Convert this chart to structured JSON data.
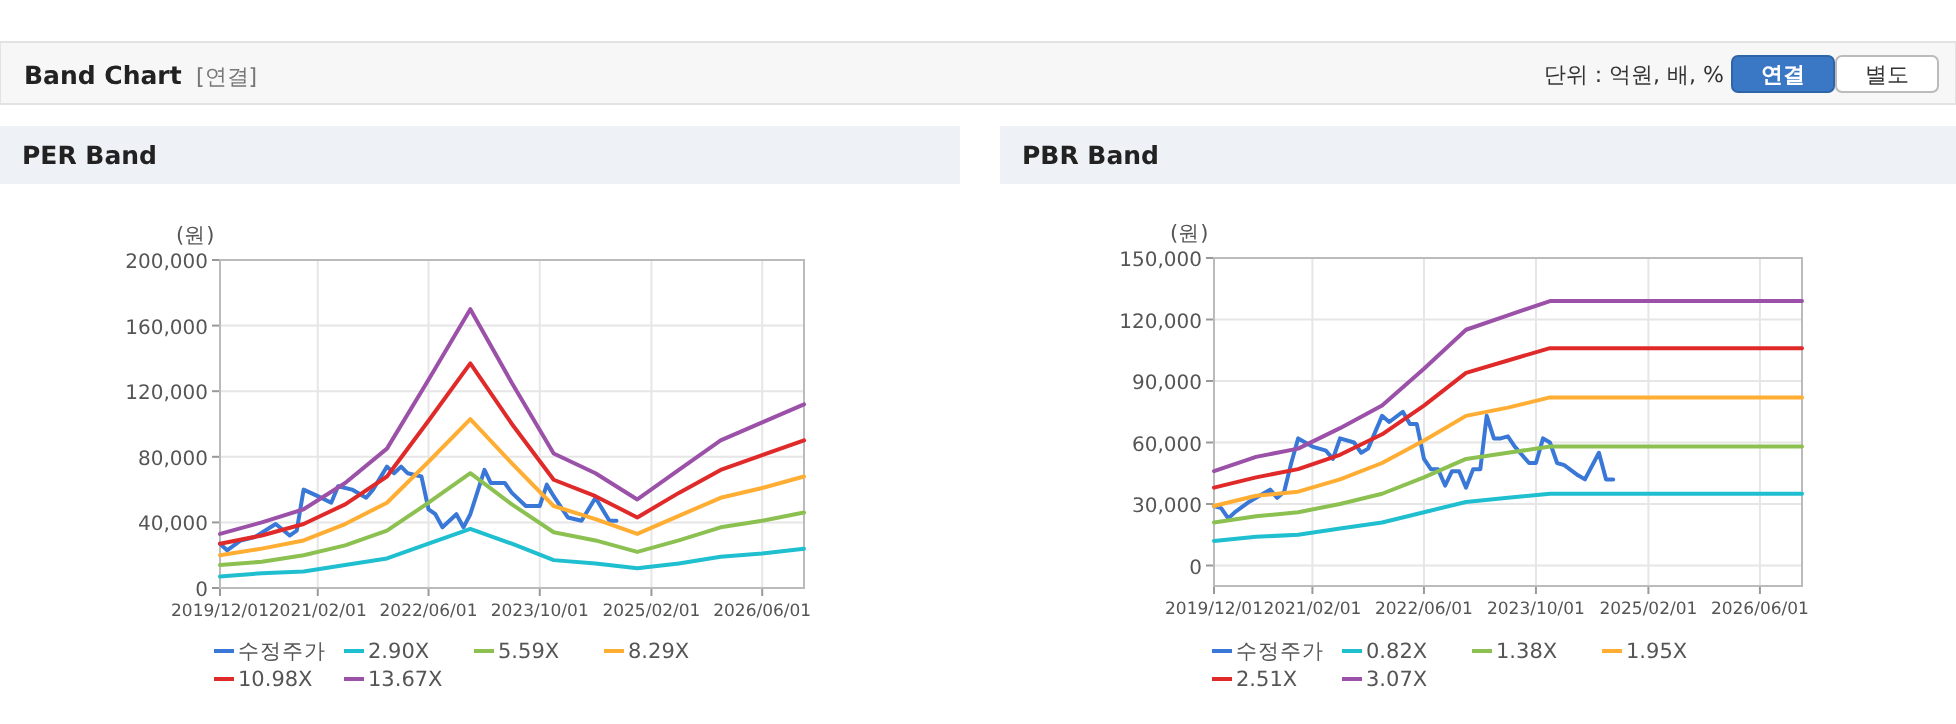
{
  "chart_data": [
    {
      "type": "other",
      "title": "Band Chart",
      "subtitle": "[연결]",
      "annotations": [
        "단위 : 억원, 배, %",
        "연결",
        "별도"
      ]
    },
    {
      "type": "line",
      "title": "PER Band",
      "ylabel": "(원)",
      "grid": true,
      "legend": "bottom",
      "marker": "none",
      "line_style": "solid",
      "xlim": [
        "2019-12-01",
        "2026-12-01"
      ],
      "ylim": [
        0,
        200000
      ],
      "xticks": [
        {
          "value": "2019-12-01",
          "label": "2019/12/01"
        },
        {
          "value": "2021-02-01",
          "label": "2021/02/01"
        },
        {
          "value": "2022-06-01",
          "label": "2022/06/01"
        },
        {
          "value": "2023-10-01",
          "label": "2023/10/01"
        },
        {
          "value": "2025-02-01",
          "label": "2025/02/01"
        },
        {
          "value": "2026-06-01",
          "label": "2026/06/01"
        }
      ],
      "yticks": [
        {
          "value": 0,
          "label": "0"
        },
        {
          "value": 40000,
          "label": "40,000"
        },
        {
          "value": 80000,
          "label": "80,000"
        },
        {
          "value": 120000,
          "label": "120,000"
        },
        {
          "value": 160000,
          "label": "160,000"
        },
        {
          "value": 200000,
          "label": "200,000"
        }
      ],
      "series": [
        {
          "name": "수정주가",
          "color": "#3a78d8",
          "x": [
            "2019-12",
            "2020-01",
            "2020-03",
            "2020-05",
            "2020-08",
            "2020-10",
            "2020-11",
            "2020-12",
            "2021-02",
            "2021-04",
            "2021-05",
            "2021-07",
            "2021-09",
            "2021-10",
            "2021-12",
            "2022-01",
            "2022-02",
            "2022-03",
            "2022-05",
            "2022-06",
            "2022-07",
            "2022-08",
            "2022-10",
            "2022-11",
            "2022-12",
            "2023-02",
            "2023-03",
            "2023-05",
            "2023-06",
            "2023-08",
            "2023-10",
            "2023-11",
            "2023-12",
            "2024-02",
            "2024-04",
            "2024-06",
            "2024-08",
            "2024-09"
          ],
          "values": [
            27000,
            23000,
            29000,
            31000,
            39000,
            32000,
            35000,
            60000,
            56000,
            52000,
            62000,
            60000,
            55000,
            60000,
            74000,
            70000,
            74000,
            70000,
            68000,
            48000,
            45000,
            37000,
            45000,
            37000,
            45000,
            72000,
            64000,
            64000,
            58000,
            50000,
            50000,
            63000,
            56000,
            43000,
            41000,
            55000,
            41000,
            41000
          ]
        },
        {
          "name": "2.90X",
          "color": "#1fbfd0",
          "x": [
            "2019-12",
            "2020-06",
            "2020-12",
            "2021-06",
            "2021-12",
            "2022-06",
            "2022-12",
            "2023-06",
            "2023-12",
            "2024-06",
            "2024-12",
            "2025-06",
            "2025-12",
            "2026-06",
            "2026-12"
          ],
          "values": [
            7000,
            9000,
            10000,
            14000,
            18000,
            27000,
            36000,
            27000,
            17000,
            15000,
            12000,
            15000,
            19000,
            21000,
            24000
          ]
        },
        {
          "name": "5.59X",
          "color": "#8cc152",
          "x": [
            "2019-12",
            "2020-06",
            "2020-12",
            "2021-06",
            "2021-12",
            "2022-06",
            "2022-12",
            "2023-06",
            "2023-12",
            "2024-06",
            "2024-12",
            "2025-06",
            "2025-12",
            "2026-06",
            "2026-12"
          ],
          "values": [
            14000,
            16000,
            20000,
            26000,
            35000,
            52000,
            70000,
            51000,
            34000,
            29000,
            22000,
            29000,
            37000,
            41000,
            46000
          ]
        },
        {
          "name": "8.29X",
          "color": "#ffad33",
          "x": [
            "2019-12",
            "2020-06",
            "2020-12",
            "2021-06",
            "2021-12",
            "2022-06",
            "2022-12",
            "2023-06",
            "2023-12",
            "2024-06",
            "2024-12",
            "2025-06",
            "2025-12",
            "2026-06",
            "2026-12"
          ],
          "values": [
            20000,
            24000,
            29000,
            39000,
            52000,
            77000,
            103000,
            76000,
            50000,
            42000,
            33000,
            44000,
            55000,
            61000,
            68000
          ]
        },
        {
          "name": "10.98X",
          "color": "#e02a2a",
          "x": [
            "2019-12",
            "2020-06",
            "2020-12",
            "2021-06",
            "2021-12",
            "2022-06",
            "2022-12",
            "2023-06",
            "2023-12",
            "2024-06",
            "2024-12",
            "2025-06",
            "2025-12",
            "2026-06",
            "2026-12"
          ],
          "values": [
            27000,
            32000,
            39000,
            51000,
            68000,
            102000,
            137000,
            100000,
            66000,
            56000,
            43000,
            58000,
            72000,
            81000,
            90000
          ]
        },
        {
          "name": "13.67X",
          "color": "#9b51a8",
          "x": [
            "2019-12",
            "2020-06",
            "2020-12",
            "2021-06",
            "2021-12",
            "2022-06",
            "2022-12",
            "2023-06",
            "2023-12",
            "2024-06",
            "2024-12",
            "2025-06",
            "2025-12",
            "2026-06",
            "2026-12"
          ],
          "values": [
            33000,
            40000,
            48000,
            64000,
            85000,
            127000,
            170000,
            125000,
            82000,
            70000,
            54000,
            72000,
            90000,
            101000,
            112000
          ]
        }
      ]
    },
    {
      "type": "line",
      "title": "PBR Band",
      "ylabel": "(원)",
      "grid": true,
      "legend": "bottom",
      "marker": "none",
      "line_style": "solid",
      "xlim": [
        "2019-12-01",
        "2026-12-01"
      ],
      "ylim": [
        -10000,
        150000
      ],
      "xticks": [
        {
          "value": "2019-12-01",
          "label": "2019/12/01"
        },
        {
          "value": "2021-02-01",
          "label": "2021/02/01"
        },
        {
          "value": "2022-06-01",
          "label": "2022/06/01"
        },
        {
          "value": "2023-10-01",
          "label": "2023/10/01"
        },
        {
          "value": "2025-02-01",
          "label": "2025/02/01"
        },
        {
          "value": "2026-06-01",
          "label": "2026/06/01"
        }
      ],
      "yticks": [
        {
          "value": 0,
          "label": "0"
        },
        {
          "value": 30000,
          "label": "30,000"
        },
        {
          "value": 60000,
          "label": "60,000"
        },
        {
          "value": 90000,
          "label": "90,000"
        },
        {
          "value": 120000,
          "label": "120,000"
        },
        {
          "value": 150000,
          "label": "150,000"
        }
      ],
      "series": [
        {
          "name": "수정주가",
          "color": "#3a78d8",
          "x": [
            "2019-12",
            "2020-01",
            "2020-02",
            "2020-03",
            "2020-05",
            "2020-06",
            "2020-08",
            "2020-09",
            "2020-10",
            "2020-11",
            "2020-12",
            "2021-02",
            "2021-04",
            "2021-05",
            "2021-06",
            "2021-08",
            "2021-09",
            "2021-10",
            "2021-12",
            "2022-01",
            "2022-03",
            "2022-04",
            "2022-05",
            "2022-06",
            "2022-07",
            "2022-08",
            "2022-09",
            "2022-10",
            "2022-11",
            "2022-12",
            "2023-01",
            "2023-02",
            "2023-03",
            "2023-04",
            "2023-05",
            "2023-06",
            "2023-07",
            "2023-09",
            "2023-10",
            "2023-11",
            "2023-12",
            "2024-01",
            "2024-02",
            "2024-04",
            "2024-05",
            "2024-07",
            "2024-08",
            "2024-09"
          ],
          "values": [
            29000,
            28000,
            23000,
            26000,
            31000,
            33000,
            37000,
            33000,
            36000,
            50000,
            62000,
            58000,
            56000,
            52000,
            62000,
            60000,
            55000,
            57000,
            73000,
            70000,
            75000,
            69000,
            69000,
            52000,
            47000,
            47000,
            39000,
            46000,
            46000,
            38000,
            47000,
            47000,
            73000,
            62000,
            62000,
            63000,
            58000,
            50000,
            50000,
            62000,
            60000,
            50000,
            49000,
            44000,
            42000,
            55000,
            42000,
            42000
          ]
        },
        {
          "name": "0.82X",
          "color": "#1fbfd0",
          "x": [
            "2019-12",
            "2020-06",
            "2020-12",
            "2021-06",
            "2021-12",
            "2022-06",
            "2022-12",
            "2023-06",
            "2023-12",
            "2026-12"
          ],
          "values": [
            12000,
            14000,
            15000,
            18000,
            21000,
            26000,
            31000,
            33000,
            35000,
            35000
          ]
        },
        {
          "name": "1.38X",
          "color": "#8cc152",
          "x": [
            "2019-12",
            "2020-06",
            "2020-12",
            "2021-06",
            "2021-12",
            "2022-06",
            "2022-12",
            "2023-06",
            "2023-12",
            "2026-12"
          ],
          "values": [
            21000,
            24000,
            26000,
            30000,
            35000,
            43000,
            52000,
            55000,
            58000,
            58000
          ]
        },
        {
          "name": "1.95X",
          "color": "#ffad33",
          "x": [
            "2019-12",
            "2020-06",
            "2020-12",
            "2021-06",
            "2021-12",
            "2022-06",
            "2022-12",
            "2023-06",
            "2023-12",
            "2026-12"
          ],
          "values": [
            29000,
            34000,
            36000,
            42000,
            50000,
            61000,
            73000,
            77000,
            82000,
            82000
          ]
        },
        {
          "name": "2.51X",
          "color": "#e02a2a",
          "x": [
            "2019-12",
            "2020-06",
            "2020-12",
            "2021-06",
            "2021-12",
            "2022-06",
            "2022-12",
            "2023-06",
            "2023-12",
            "2026-12"
          ],
          "values": [
            38000,
            43000,
            47000,
            54000,
            64000,
            78000,
            94000,
            100000,
            106000,
            106000
          ]
        },
        {
          "name": "3.07X",
          "color": "#9b51a8",
          "x": [
            "2019-12",
            "2020-06",
            "2020-12",
            "2021-06",
            "2021-12",
            "2022-06",
            "2022-12",
            "2023-06",
            "2023-12",
            "2026-12"
          ],
          "values": [
            46000,
            53000,
            57000,
            67000,
            78000,
            96000,
            115000,
            122000,
            129000,
            129000
          ]
        }
      ]
    }
  ]
}
